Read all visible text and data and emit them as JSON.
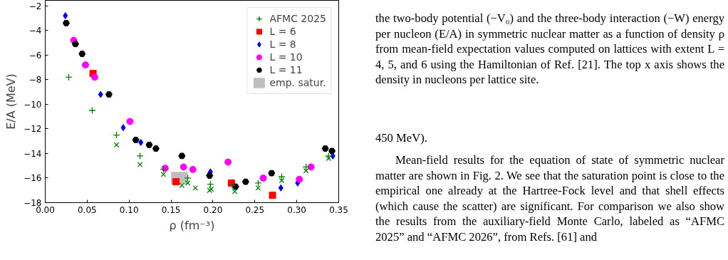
{
  "chart_data": {
    "type": "scatter",
    "xlabel": "ρ (fm⁻³)",
    "ylabel": "E/A (MeV)",
    "xlim": [
      0.0,
      0.35
    ],
    "xticks": [
      {
        "value": 0,
        "label": "0.00"
      },
      {
        "value": 0.05,
        "label": "0.05"
      },
      {
        "value": 0.1,
        "label": "0.10"
      },
      {
        "value": 0.15,
        "label": "0.15"
      },
      {
        "value": 0.2,
        "label": "0.20"
      },
      {
        "value": 0.25,
        "label": "0.25"
      },
      {
        "value": 0.3,
        "label": "0.30"
      },
      {
        "value": 0.35,
        "label": "0.35"
      }
    ],
    "ylim": [
      -18,
      -1.55
    ],
    "yticks": [
      -18,
      -16,
      -14,
      -12,
      -10,
      -8,
      -6,
      -4,
      -2
    ],
    "grid": false,
    "legend": "top right",
    "series": [
      {
        "name": "AFMC 2025",
        "color": "#008000",
        "marker": "cross",
        "x": [
          0.028,
          0.056,
          0.085,
          0.113,
          0.141,
          0.17,
          0.197,
          0.223,
          0.254,
          0.282,
          0.311,
          0.338
        ],
        "values": [
          -7.8,
          -10.5,
          -12.5,
          -14.2,
          -15.3,
          -16.0,
          -16.5,
          -16.6,
          -16.4,
          -15.9,
          -15.1,
          -14.2
        ]
      },
      {
        "color": "#008000",
        "marker": "x",
        "x": [
          0.085,
          0.113,
          0.141,
          0.163,
          0.17,
          0.179,
          0.196,
          0.198,
          0.226,
          0.254,
          0.282,
          0.311,
          0.338
        ],
        "values": [
          -13.3,
          -14.9,
          -15.7,
          -16.6,
          -16.4,
          -16.8,
          -17.0,
          -16.9,
          -17.1,
          -16.8,
          -16.2,
          -15.4,
          -14.4
        ]
      },
      {
        "name": "L = 6",
        "color": "#ff0000",
        "marker": "square",
        "x": [
          0.057,
          0.156,
          0.222,
          0.271
        ],
        "values": [
          -7.5,
          -16.3,
          -16.4,
          -17.4
        ]
      },
      {
        "name": "L = 8",
        "color": "#0000ff",
        "marker": "diamond",
        "x": [
          0.024,
          0.066,
          0.093,
          0.114,
          0.197,
          0.281,
          0.301,
          0.343
        ],
        "values": [
          -2.8,
          -9.2,
          -11.9,
          -13.1,
          -15.5,
          -16.8,
          -16.4,
          -14.2
        ]
      },
      {
        "name": "L = 10",
        "color": "#ff00ff",
        "marker": "circle",
        "x": [
          0.034,
          0.048,
          0.059,
          0.101,
          0.143,
          0.165,
          0.176,
          0.218,
          0.26,
          0.303,
          0.317
        ],
        "values": [
          -4.8,
          -6.8,
          -7.8,
          -11.4,
          -15.2,
          -15.1,
          -15.3,
          -14.7,
          -16.0,
          -16.1,
          -15.1
        ]
      },
      {
        "name": "L = 11",
        "color": "#000000",
        "x": [
          0.025,
          0.036,
          0.044,
          0.076,
          0.108,
          0.124,
          0.132,
          0.163,
          0.196,
          0.227,
          0.239,
          0.27,
          0.334,
          0.342
        ],
        "values": [
          -3.4,
          -5.1,
          -5.9,
          -9.2,
          -12.9,
          -13.3,
          -13.6,
          -14.2,
          -15.8,
          -16.7,
          -16.3,
          -15.6,
          -13.6,
          -13.8
        ]
      },
      {
        "name": "emp. satur.",
        "color": "#bfbfbf",
        "marker": "square",
        "x": [
          0.16
        ],
        "values": [
          -16.0
        ],
        "xerrors": [
          0.01
        ],
        "errors": [
          0.5
        ]
      }
    ],
    "annotations": [
      "the two-body potential (−V₀) and the three-body interaction (−W) energy per nucleon (E/A) in symmetric nuclear matter as a function of density ρ from mean-field expectation values computed on lattices with extent L = 4, 5, and 6 using the Hamiltonian of Ref. [21]. The top x axis shows the density in nucleons per lattice site.",
      "450 MeV).",
      "Mean-field results for the equation of state of symmetric nuclear matter are shown in Fig. 2. We see that the saturation point is close to the empirical one already at the Hartree-Fock level and that shell effects (which cause the scatter) are significant. For comparison we also show the results from the auxiliary-field Monte Carlo, labeled as “AFMC 2025” and “AFMC 2026”, from Refs. [61] and"
    ]
  }
}
